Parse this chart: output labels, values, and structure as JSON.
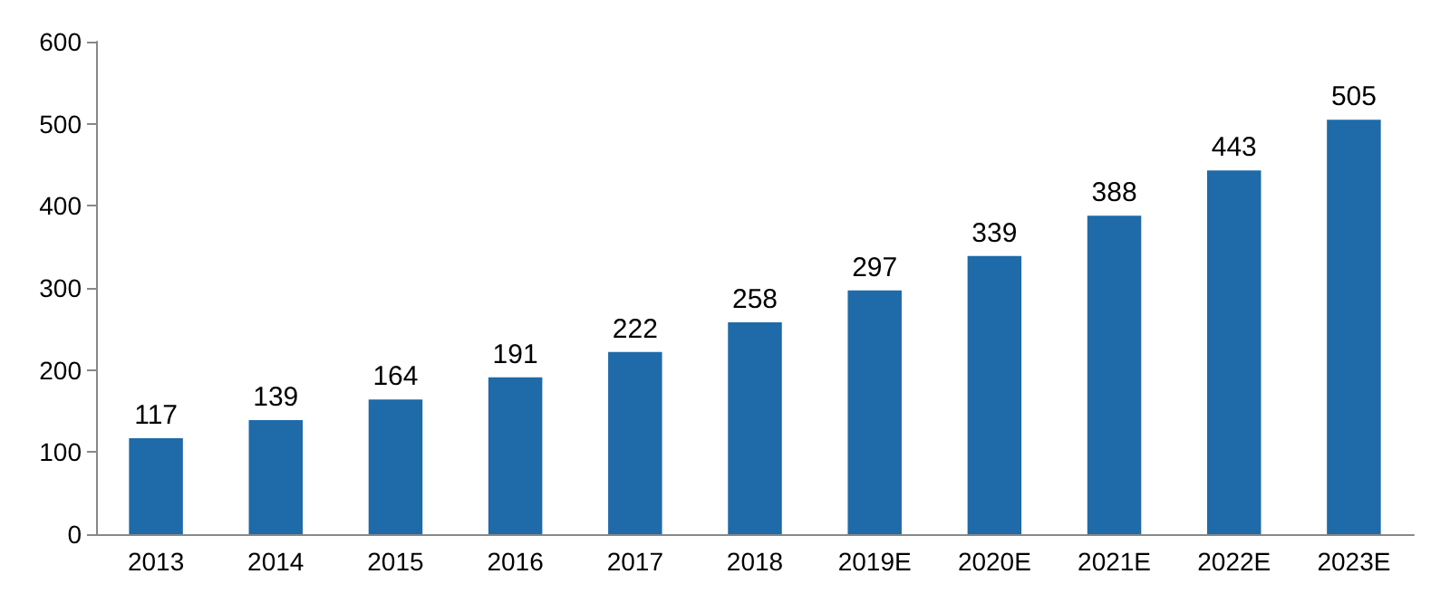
{
  "chart_data": {
    "type": "bar",
    "categories": [
      "2013",
      "2014",
      "2015",
      "2016",
      "2017",
      "2018",
      "2019E",
      "2020E",
      "2021E",
      "2022E",
      "2023E"
    ],
    "values": [
      117,
      139,
      164,
      191,
      222,
      258,
      297,
      339,
      388,
      443,
      505
    ],
    "color": "#1f6aa8",
    "ylim": [
      0,
      600
    ],
    "yticks": [
      0,
      100,
      200,
      300,
      400,
      500,
      600
    ],
    "grid": false,
    "data_labels": true
  }
}
